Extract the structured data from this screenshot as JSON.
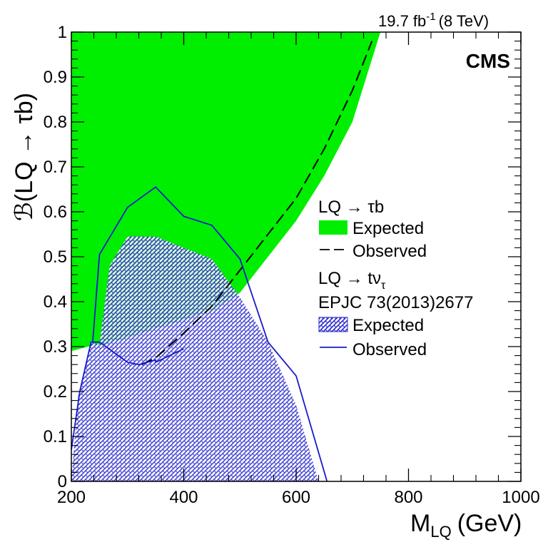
{
  "header": {
    "lumi_value": "19.7 fb",
    "lumi_exp": "-1",
    "lumi_energy": "(8 TeV)",
    "experiment": "CMS"
  },
  "axes": {
    "x_title_main": "M",
    "x_title_sub": "LQ",
    "x_title_unit": "(GeV)",
    "y_title": "ℬ(LQ → τb)"
  },
  "legend": {
    "group1_header": "LQ → τb",
    "group1_expected": "Expected",
    "group1_observed": "Observed",
    "group2_header_main": "LQ → tν",
    "group2_header_sub": "τ",
    "group2_reference": "EPJC 73(2013)2677",
    "group2_expected": "Expected",
    "group2_observed": "Observed"
  },
  "colors": {
    "tau_b_expected_fill": "#00ee00",
    "tau_b_observed_line": "#000000",
    "t_nu_expected_fill": "#2b2bcc",
    "t_nu_observed_line": "#1a1acc"
  },
  "chart_data": {
    "type": "area",
    "xlabel": "M_LQ (GeV)",
    "ylabel": "ℬ(LQ → τb)",
    "xlim": [
      200,
      1000
    ],
    "ylim": [
      0,
      1
    ],
    "x_ticks": [
      "200",
      "400",
      "600",
      "800",
      "1000"
    ],
    "y_ticks": [
      "0",
      "0.1",
      "0.2",
      "0.3",
      "0.4",
      "0.5",
      "0.6",
      "0.7",
      "0.8",
      "0.9",
      "1"
    ],
    "grid": false,
    "legend_position": "right",
    "series": [
      {
        "name": "LQ → τb Expected",
        "style": "filled-region",
        "lower_bound": [
          [
            200,
            0.29
          ],
          [
            230,
            0.3
          ],
          [
            260,
            0.305
          ],
          [
            300,
            0.32
          ],
          [
            350,
            0.34
          ],
          [
            400,
            0.36
          ],
          [
            450,
            0.38
          ],
          [
            500,
            0.42
          ],
          [
            550,
            0.5
          ],
          [
            600,
            0.58
          ],
          [
            650,
            0.68
          ],
          [
            700,
            0.8
          ],
          [
            750,
            1.0
          ]
        ],
        "upper_bound": 1.0
      },
      {
        "name": "LQ → τb Observed",
        "style": "dashed-line",
        "points": [
          [
            325,
            0.26
          ],
          [
            350,
            0.275
          ],
          [
            400,
            0.33
          ],
          [
            450,
            0.39
          ],
          [
            500,
            0.47
          ],
          [
            550,
            0.55
          ],
          [
            600,
            0.63
          ],
          [
            650,
            0.74
          ],
          [
            700,
            0.87
          ],
          [
            735,
            0.98
          ]
        ]
      },
      {
        "name": "LQ → tντ Expected",
        "style": "hatched-region",
        "points": [
          [
            200,
            0
          ],
          [
            212,
            0.19
          ],
          [
            235,
            0.31
          ],
          [
            250,
            0.305
          ],
          [
            268,
            0.48
          ],
          [
            300,
            0.545
          ],
          [
            350,
            0.545
          ],
          [
            400,
            0.52
          ],
          [
            450,
            0.495
          ],
          [
            500,
            0.41
          ],
          [
            550,
            0.31
          ],
          [
            600,
            0.17
          ],
          [
            640,
            0.0
          ]
        ]
      },
      {
        "name": "LQ → tντ Observed",
        "style": "solid-line",
        "points": [
          [
            200,
            0.07
          ],
          [
            215,
            0.2
          ],
          [
            235,
            0.31
          ],
          [
            250,
            0.31
          ],
          [
            300,
            0.265
          ],
          [
            320,
            0.26
          ],
          [
            350,
            0.27
          ],
          [
            350,
            0.265
          ],
          [
            400,
            0.295
          ]
        ]
      },
      {
        "name": "LQ → tντ Observed (upper branch)",
        "style": "solid-line",
        "points": [
          [
            238,
            0.31
          ],
          [
            250,
            0.505
          ],
          [
            300,
            0.61
          ],
          [
            350,
            0.655
          ],
          [
            400,
            0.59
          ],
          [
            450,
            0.57
          ],
          [
            500,
            0.495
          ],
          [
            550,
            0.31
          ],
          [
            600,
            0.235
          ],
          [
            655,
            0.0
          ]
        ]
      }
    ]
  }
}
